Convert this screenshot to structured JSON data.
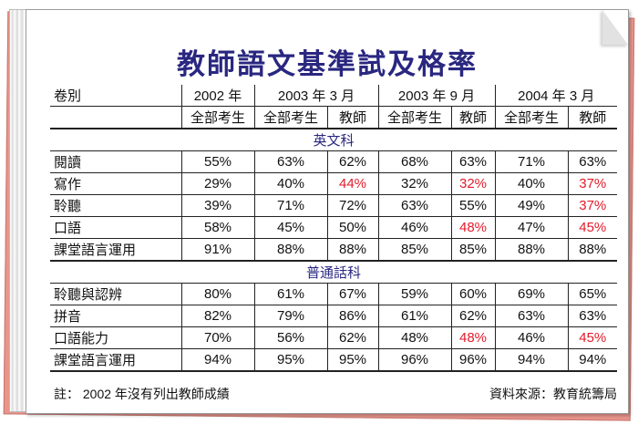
{
  "title": "教師語文基準試及格率",
  "colors": {
    "title": "#2a2780",
    "highlight": "#e21b2a",
    "backing_page": "#e8958c"
  },
  "header": {
    "paper_label": "卷別",
    "periods": [
      "2002 年",
      "2003 年 3 月",
      "2003 年 9 月",
      "2004 年 3 月"
    ],
    "sub_all": "全部考生",
    "sub_teacher": "教師"
  },
  "sections": [
    {
      "name": "英文科",
      "rows": [
        {
          "label": "閱讀",
          "cells": [
            "55%",
            "63%",
            "62%",
            "68%",
            "63%",
            "71%",
            "63%"
          ],
          "highlight": [
            false,
            false,
            false,
            false,
            false,
            false,
            false
          ]
        },
        {
          "label": "寫作",
          "cells": [
            "29%",
            "40%",
            "44%",
            "32%",
            "32%",
            "40%",
            "37%"
          ],
          "highlight": [
            false,
            false,
            true,
            false,
            true,
            false,
            true
          ]
        },
        {
          "label": "聆聽",
          "cells": [
            "39%",
            "71%",
            "72%",
            "63%",
            "55%",
            "49%",
            "37%"
          ],
          "highlight": [
            false,
            false,
            false,
            false,
            false,
            false,
            true
          ]
        },
        {
          "label": "口語",
          "cells": [
            "58%",
            "45%",
            "50%",
            "46%",
            "48%",
            "47%",
            "45%"
          ],
          "highlight": [
            false,
            false,
            false,
            false,
            true,
            false,
            true
          ]
        },
        {
          "label": "課堂語言運用",
          "cells": [
            "91%",
            "88%",
            "88%",
            "85%",
            "85%",
            "88%",
            "88%"
          ],
          "highlight": [
            false,
            false,
            false,
            false,
            false,
            false,
            false
          ]
        }
      ]
    },
    {
      "name": "普通話科",
      "rows": [
        {
          "label": "聆聽與認辨",
          "cells": [
            "80%",
            "61%",
            "67%",
            "59%",
            "60%",
            "69%",
            "65%"
          ],
          "highlight": [
            false,
            false,
            false,
            false,
            false,
            false,
            false
          ]
        },
        {
          "label": "拼音",
          "cells": [
            "82%",
            "79%",
            "86%",
            "61%",
            "62%",
            "63%",
            "63%"
          ],
          "highlight": [
            false,
            false,
            false,
            false,
            false,
            false,
            false
          ]
        },
        {
          "label": "口語能力",
          "cells": [
            "70%",
            "56%",
            "62%",
            "48%",
            "48%",
            "46%",
            "45%"
          ],
          "highlight": [
            false,
            false,
            false,
            false,
            true,
            false,
            true
          ]
        },
        {
          "label": "課堂語言運用",
          "cells": [
            "94%",
            "95%",
            "95%",
            "96%",
            "96%",
            "94%",
            "94%"
          ],
          "highlight": [
            false,
            false,
            false,
            false,
            false,
            false,
            false
          ]
        }
      ]
    }
  ],
  "footer": {
    "note": "註： 2002 年沒有列出教師成績",
    "source": "資料來源：教育統籌局"
  }
}
